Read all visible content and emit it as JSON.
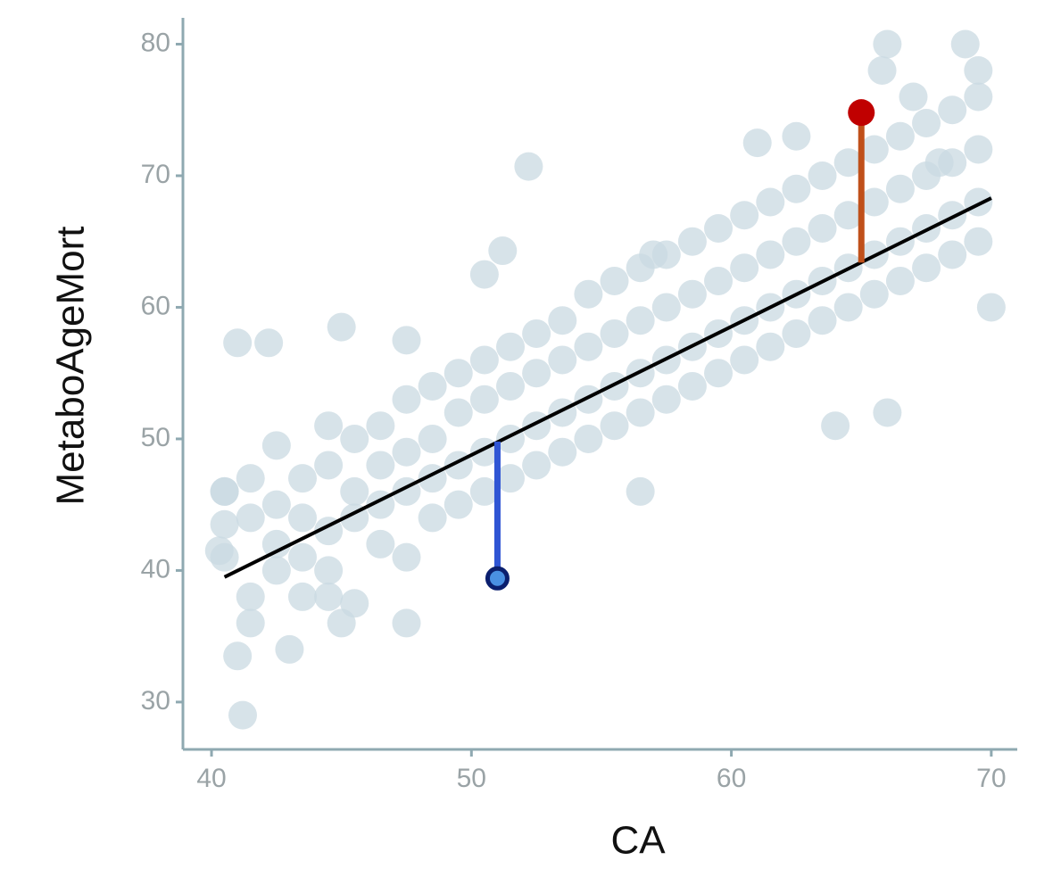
{
  "chart_data": {
    "type": "scatter",
    "xlabel": "CA",
    "ylabel": "MetaboAgeMort",
    "xlim": [
      38.9,
      71.0
    ],
    "ylim": [
      26.4,
      82.0
    ],
    "xticks": [
      40,
      50,
      60,
      70
    ],
    "yticks": [
      30,
      40,
      50,
      60,
      70,
      80
    ],
    "series": [
      {
        "color": "#c9d9e1",
        "x": [
          40.5,
          40.5,
          40.5,
          41.5,
          41.5,
          41.5,
          41.5,
          42.5,
          42.5,
          42.5,
          42.5,
          43.5,
          43.5,
          43.5,
          43.5,
          44.5,
          44.5,
          44.5,
          44.5,
          45.5,
          45.5,
          45.5,
          45.5,
          46.5,
          46.5,
          46.5,
          46.5,
          47.5,
          47.5,
          47.5,
          47.5,
          48.5,
          48.5,
          48.5,
          48.5,
          49.5,
          49.5,
          49.5,
          49.5,
          50.5,
          50.5,
          50.5,
          50.5,
          51.5,
          51.5,
          51.5,
          51.5,
          52.5,
          52.5,
          52.5,
          52.5,
          53.5,
          53.5,
          53.5,
          53.5,
          54.5,
          54.5,
          54.5,
          54.5,
          55.5,
          55.5,
          55.5,
          55.5,
          56.5,
          56.5,
          56.5,
          56.5,
          57.5,
          57.5,
          57.5,
          57.5,
          58.5,
          58.5,
          58.5,
          58.5,
          59.5,
          59.5,
          59.5,
          59.5,
          60.5,
          60.5,
          60.5,
          60.5,
          61.5,
          61.5,
          61.5,
          61.5,
          62.5,
          62.5,
          62.5,
          62.5,
          63.5,
          63.5,
          63.5,
          63.5,
          64.5,
          64.5,
          64.5,
          64.5,
          65.5,
          65.5,
          65.5,
          65.5,
          66.5,
          66.5,
          66.5,
          66.5,
          67.5,
          67.5,
          67.5,
          67.5,
          68.5,
          68.5,
          68.5,
          68.5,
          69.5,
          69.5,
          69.5,
          69.5,
          41,
          42.2,
          45,
          52.2,
          41.2,
          41,
          43,
          51.2,
          50.5,
          47.5,
          57,
          61,
          62.5,
          66,
          65.8,
          67,
          69,
          69.5,
          68,
          64,
          66,
          70,
          56.5,
          47.5,
          45,
          44.5,
          40.5,
          40.3
        ],
        "values": [
          41,
          46,
          43.5,
          38,
          44,
          47,
          36,
          40,
          45,
          49.5,
          42,
          41,
          47,
          44,
          38,
          43,
          48,
          51,
          40,
          44,
          50,
          46,
          37.5,
          45,
          51,
          48,
          42,
          46,
          53,
          49,
          41,
          47,
          54,
          50,
          44,
          48,
          55,
          52,
          45,
          49,
          56,
          53,
          46,
          50,
          57,
          54,
          47,
          51,
          58,
          55,
          48,
          52,
          59,
          56,
          49,
          53,
          61,
          57,
          50,
          54,
          62,
          58,
          51,
          55,
          63,
          59,
          52,
          56,
          64,
          60,
          53,
          57,
          65,
          61,
          54,
          58,
          66,
          62,
          55,
          59,
          67,
          63,
          56,
          60,
          68,
          64,
          57,
          61,
          69,
          65,
          58,
          62,
          70,
          66,
          59,
          63,
          71,
          67,
          60,
          64,
          72,
          68,
          61,
          65,
          73,
          69,
          62,
          66,
          74,
          70,
          63,
          67,
          75,
          71,
          64,
          68,
          76,
          72,
          65,
          57.3,
          57.3,
          58.5,
          70.7,
          29,
          33.5,
          34,
          64.3,
          62.5,
          57.5,
          64,
          72.5,
          73,
          80,
          78,
          76,
          80,
          78,
          71,
          51,
          52,
          60,
          46,
          36,
          36,
          38,
          46,
          41.5
        ]
      },
      {
        "color": "#c00000",
        "x": [
          65
        ],
        "values": [
          74.8
        ]
      },
      {
        "color": "#4a90e2",
        "edgecolor": "#0b1f6e",
        "x": [
          51
        ],
        "values": [
          39.4
        ]
      }
    ],
    "lines": [
      {
        "color": "#000000",
        "x": [
          40.5,
          70
        ],
        "values": [
          39.5,
          68.3
        ]
      },
      {
        "color": "#c0501a",
        "x": [
          65,
          65
        ],
        "values": [
          63.4,
          74.8
        ]
      },
      {
        "color": "#2f55d4",
        "x": [
          51,
          51
        ],
        "values": [
          49.8,
          39.4
        ]
      }
    ]
  }
}
